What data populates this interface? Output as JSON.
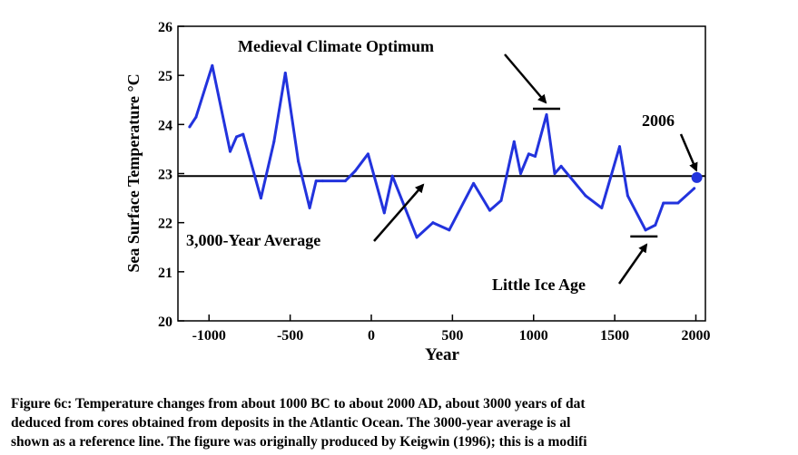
{
  "chart_data": {
    "type": "line",
    "title": "",
    "xlabel": "Year",
    "ylabel": "Sea Surface Temperature °C",
    "xlim": [
      -1200,
      2000
    ],
    "ylim": [
      20,
      26
    ],
    "x_ticks": [
      -1000,
      -500,
      0,
      500,
      1000,
      1500,
      2000
    ],
    "y_ticks": [
      20,
      21,
      22,
      23,
      24,
      25,
      26
    ],
    "grid": false,
    "legend": "none",
    "series": [
      {
        "color": "#2233dd",
        "x": [
          -1120,
          -1080,
          -980,
          -870,
          -830,
          -790,
          -680,
          -600,
          -530,
          -450,
          -380,
          -340,
          -300,
          -160,
          -100,
          -20,
          80,
          130,
          280,
          380,
          480,
          630,
          730,
          800,
          880,
          920,
          970,
          1010,
          1080,
          1130,
          1170,
          1320,
          1420,
          1530,
          1580,
          1690,
          1750,
          1800,
          1890,
          1990
        ],
        "y": [
          23.95,
          24.15,
          25.2,
          23.45,
          23.75,
          23.8,
          22.5,
          23.65,
          25.05,
          23.25,
          22.3,
          22.85,
          22.85,
          22.85,
          23.05,
          23.4,
          22.2,
          22.95,
          21.7,
          22.0,
          21.85,
          22.8,
          22.25,
          22.45,
          23.65,
          23.0,
          23.4,
          23.35,
          24.2,
          23.0,
          23.15,
          22.55,
          22.3,
          23.55,
          22.55,
          21.85,
          21.95,
          22.4,
          22.4,
          22.7
        ]
      }
    ],
    "reference_line": {
      "label": "3,000-Year Average",
      "y": 22.95,
      "color": "#000000"
    },
    "highlight_point": {
      "label": "2006",
      "x": 2006,
      "y": 22.92,
      "color": "#2233dd"
    },
    "annotations": [
      {
        "text": "Medieval Climate Optimum",
        "x": 1080,
        "y": 24.32
      },
      {
        "text": "Little Ice Age",
        "x": 1680,
        "y": 21.72
      },
      {
        "text": "2006",
        "x": 2006,
        "y": 22.92
      },
      {
        "text": "3,000-Year Average",
        "x": 320,
        "y": 22.95
      }
    ]
  },
  "caption": [
    "Figure 6c: Temperature changes from about 1000 BC to about 2000 AD, about 3000 years of dat",
    "deduced from cores obtained from deposits in the Atlantic Ocean. The 3000-year average is al",
    "shown as a reference line. The figure was originally produced by Keigwin (1996); this is a modifi"
  ]
}
